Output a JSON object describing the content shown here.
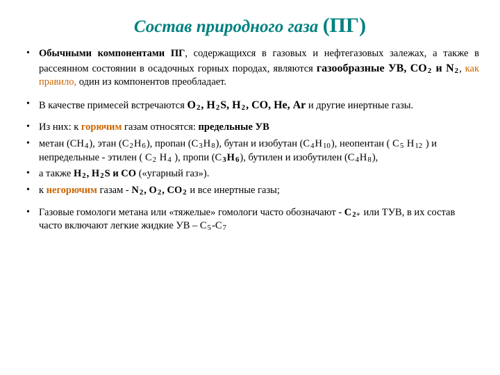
{
  "title_main": "Состав природного газа",
  "title_suffix": "(ПГ)",
  "bullets": {
    "b1": {
      "t1": "Обычными компонентами ПГ",
      "t2": ", содержащихся в газовых и нефтегазовых залежах, а также в рассеянном состоянии в осадочных горных породах, являются ",
      "t3": "газообразные УВ, СО",
      "s1": "2",
      "t4": " и N",
      "s2": "2",
      "t5": ", ",
      "t6": "как правило,",
      "t7": " один из компонентов преобладает."
    },
    "b2": {
      "t1": "В качестве примесей встречаются ",
      "t2": "О",
      "s1": "2",
      "t3": ", Н",
      "s2": "2",
      "t4": "S, Н",
      "s3": "2",
      "t5": ", СО, Не, Аr",
      "t6": " и другие инертные газы."
    },
    "b3": {
      "t1": "Из них: к ",
      "t2": "горючим",
      "t3": " газам относятся: ",
      "t4": "предельные УВ"
    },
    "b4": {
      "t1": "  метан (СН",
      "s1": "4",
      "t2": "), этан (С",
      "s2": "2",
      "t3": "Н",
      "s3": "6",
      "t4": "), пропан (С",
      "s4": "3",
      "t5": "Н",
      "s5": "8",
      "t6": "), бутан и изобутан (С",
      "s6": "4",
      "t7": "Н",
      "s7": "10",
      "t8": "), неопентан ( С",
      "s8": "5",
      "t9": " Н",
      "s9": "12",
      "t10": " ) и непредельные - этилен ( С",
      "s10": "2",
      "t11": " Н",
      "s11": "4",
      "t12": " ), пропи (С",
      "s12": "3",
      "t13": "Н",
      "s13": "6",
      "t14": "), бутилен и изобутилен (С",
      "s14": "4",
      "t15": "Н",
      "s15": "8",
      "t16": "),"
    },
    "b5": {
      "t1": "а также ",
      "t2": "Н",
      "s1": "2",
      "t3": ", Н",
      "s2": "2",
      "t4": "S и СО",
      "t5": " («угарный газ»)."
    },
    "b6": {
      "t1": "к ",
      "t2": "негорючим",
      "t3": " газам - ",
      "t4": "N",
      "s1": "2",
      "t5": ", O",
      "s2": "2",
      "t6": ", СО",
      "s3": "2",
      "t7": " и все инертные газы;"
    },
    "b7": {
      "t1": "Газовые гомологи метана или «тяжелые» гомологи часто обозначают - ",
      "t2": "С",
      "s1": "2+",
      "t3": " или ТУВ, в их состав часто включают  легкие жидкие УВ –  С",
      "s2": "5",
      "t4": "-С",
      "s3": "7"
    }
  }
}
